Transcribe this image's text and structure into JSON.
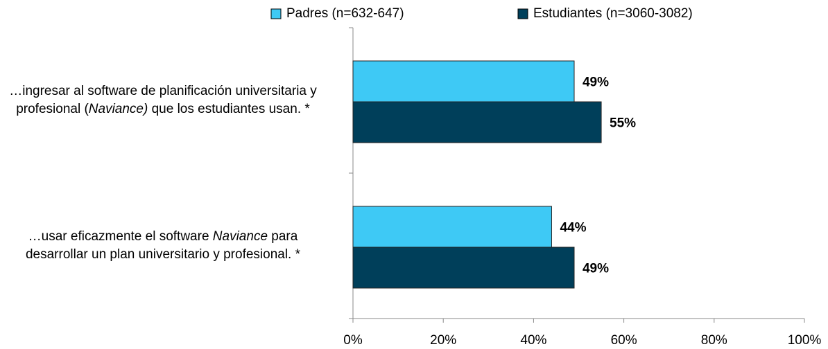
{
  "chart_data": {
    "type": "bar",
    "orientation": "horizontal",
    "categories": [
      [
        "…ingresar al software de planificación universitaria y profesional (",
        {
          "text": "Naviance)",
          "italic": true
        },
        " que los estudiantes usan. *"
      ],
      [
        "…usar eficazmente el software ",
        {
          "text": "Naviance",
          "italic": true
        },
        " para desarrollar un plan universitario y profesional. *"
      ]
    ],
    "series": [
      {
        "name": "Padres (n=632-647)",
        "color": "#3ec9f5",
        "values": [
          49,
          44
        ],
        "value_labels": [
          "49%",
          "44%"
        ]
      },
      {
        "name": "Estudiantes (n=3060-3082)",
        "color": "#003f5a",
        "values": [
          55,
          49
        ],
        "value_labels": [
          "55%",
          "49%"
        ]
      }
    ],
    "xlim": [
      0,
      100
    ],
    "xticks": [
      {
        "value": 0,
        "label": "0%"
      },
      {
        "value": 20,
        "label": "20%"
      },
      {
        "value": 40,
        "label": "40%"
      },
      {
        "value": 60,
        "label": "60%"
      },
      {
        "value": 80,
        "label": "80%"
      },
      {
        "value": 100,
        "label": "100%"
      }
    ],
    "grid": false,
    "legend": "top"
  }
}
